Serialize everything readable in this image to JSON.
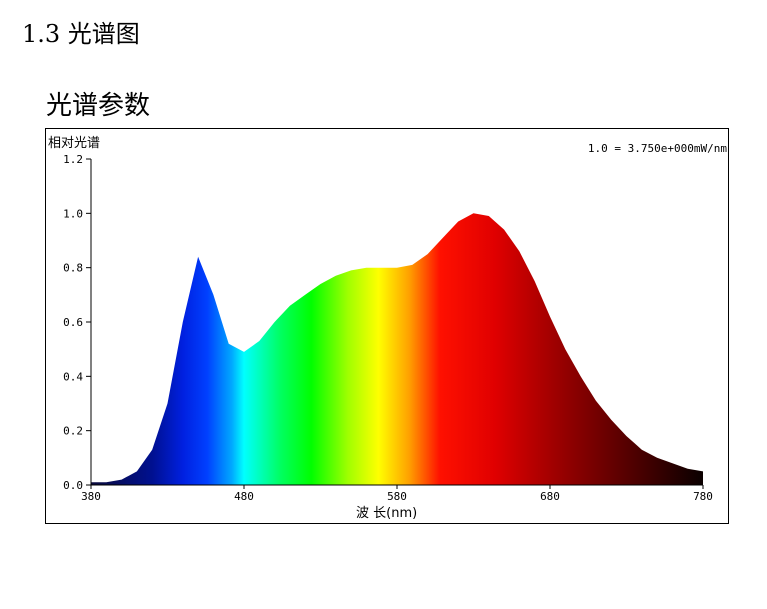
{
  "header": {
    "section": "1.3 光谱图",
    "subtitle": "光谱参数"
  },
  "chart_data": {
    "type": "area",
    "y_label": "相对光谱",
    "x_label": "波 长(nm)",
    "annotation": "1.0 = 3.750e+000mW/nm",
    "x": [
      380,
      390,
      400,
      410,
      420,
      430,
      440,
      450,
      460,
      470,
      480,
      490,
      500,
      510,
      520,
      530,
      540,
      550,
      560,
      570,
      580,
      590,
      600,
      610,
      620,
      630,
      640,
      650,
      660,
      670,
      680,
      690,
      700,
      710,
      720,
      730,
      740,
      750,
      760,
      770,
      780
    ],
    "values": [
      0.01,
      0.01,
      0.02,
      0.05,
      0.13,
      0.3,
      0.6,
      0.84,
      0.7,
      0.52,
      0.49,
      0.53,
      0.6,
      0.66,
      0.7,
      0.74,
      0.77,
      0.79,
      0.8,
      0.8,
      0.8,
      0.81,
      0.85,
      0.91,
      0.97,
      1.0,
      0.99,
      0.94,
      0.86,
      0.75,
      0.62,
      0.5,
      0.4,
      0.31,
      0.24,
      0.18,
      0.13,
      0.1,
      0.08,
      0.06,
      0.05
    ],
    "xlim": [
      380,
      780
    ],
    "xticks": [
      380,
      480,
      580,
      680,
      780
    ],
    "ylim": [
      0,
      1.2
    ],
    "yticks": [
      {
        "value": 0,
        "label": "0.0"
      },
      0.2,
      0.4,
      0.6,
      0.8,
      {
        "value": 1,
        "label": "1.0"
      },
      1.2
    ]
  }
}
